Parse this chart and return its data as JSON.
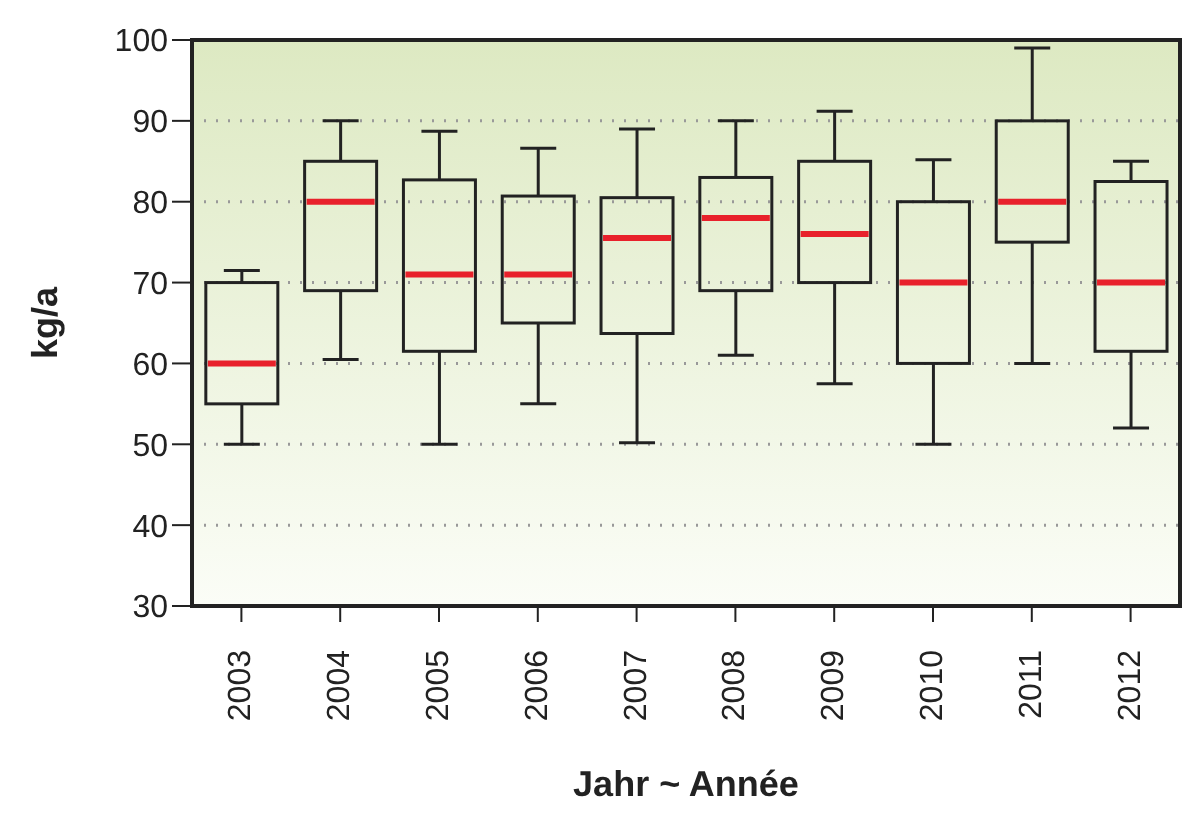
{
  "chart_data": {
    "type": "box",
    "xlabel": "Jahr ~ Année",
    "ylabel": "kg/a",
    "categories": [
      "2003",
      "2004",
      "2005",
      "2006",
      "2007",
      "2008",
      "2009",
      "2010",
      "2011",
      "2012"
    ],
    "color": "#222222",
    "boxes": [
      {
        "low": 50,
        "q1": 55,
        "median": 60,
        "q3": 70,
        "high": 71.5
      },
      {
        "low": 60.5,
        "q1": 69,
        "median": 80,
        "q3": 85,
        "high": 90
      },
      {
        "low": 50,
        "q1": 61.5,
        "median": 71,
        "q3": 82.7,
        "high": 88.7
      },
      {
        "low": 55,
        "q1": 65,
        "median": 71,
        "q3": 80.7,
        "high": 86.6
      },
      {
        "low": 50.2,
        "q1": 63.7,
        "median": 75.5,
        "q3": 80.5,
        "high": 89
      },
      {
        "low": 61,
        "q1": 69,
        "median": 78,
        "q3": 83,
        "high": 90
      },
      {
        "low": 57.5,
        "q1": 70,
        "median": 76,
        "q3": 85,
        "high": 91.2
      },
      {
        "low": 50,
        "q1": 60,
        "median": 70,
        "q3": 80,
        "high": 85.2
      },
      {
        "low": 60,
        "q1": 75,
        "median": 80,
        "q3": 90,
        "high": 99
      },
      {
        "low": 52,
        "q1": 61.5,
        "median": 70,
        "q3": 82.5,
        "high": 85
      }
    ],
    "ylim": [
      30,
      100
    ],
    "yticks": [
      30,
      40,
      50,
      60,
      70,
      80,
      90,
      100
    ],
    "grid": "y"
  }
}
